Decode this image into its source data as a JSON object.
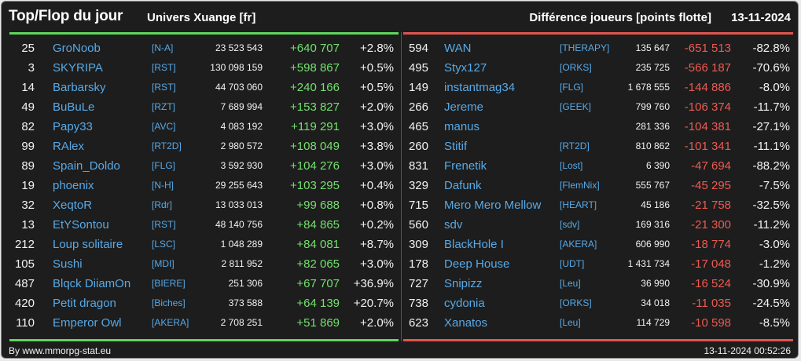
{
  "header": {
    "title": "Top/Flop du jour",
    "universe": "Univers Xuange [fr]",
    "metric": "Différence joueurs [points flotte]",
    "date": "13-11-2024"
  },
  "colors": {
    "top": "#5dd65a",
    "flop": "#e0554f",
    "link": "#58a9e6",
    "background": "#1d1d1d"
  },
  "top": [
    {
      "rank": "25",
      "name": "GroNoob",
      "ally": "[N-A]",
      "points": "23 523 543",
      "diff": "+640 707",
      "pct": "+2.8%"
    },
    {
      "rank": "3",
      "name": "SKYRIPA",
      "ally": "[RST]",
      "points": "130 098 159",
      "diff": "+598 867",
      "pct": "+0.5%"
    },
    {
      "rank": "14",
      "name": "Barbarsky",
      "ally": "[RST]",
      "points": "44 703 060",
      "diff": "+240 166",
      "pct": "+0.5%"
    },
    {
      "rank": "49",
      "name": "BuBuLe",
      "ally": "[RZT]",
      "points": "7 689 994",
      "diff": "+153 827",
      "pct": "+2.0%"
    },
    {
      "rank": "82",
      "name": "Papy33",
      "ally": "[AVC]",
      "points": "4 083 192",
      "diff": "+119 291",
      "pct": "+3.0%"
    },
    {
      "rank": "99",
      "name": "RAlex",
      "ally": "[RT2D]",
      "points": "2 980 572",
      "diff": "+108 049",
      "pct": "+3.8%"
    },
    {
      "rank": "89",
      "name": "Spain_Doldo",
      "ally": "[FLG]",
      "points": "3 592 930",
      "diff": "+104 276",
      "pct": "+3.0%"
    },
    {
      "rank": "19",
      "name": "phoenix",
      "ally": "[N-H]",
      "points": "29 255 643",
      "diff": "+103 295",
      "pct": "+0.4%"
    },
    {
      "rank": "32",
      "name": "XeqtoR",
      "ally": "[Rdr]",
      "points": "13 033 013",
      "diff": "+99 688",
      "pct": "+0.8%"
    },
    {
      "rank": "13",
      "name": "EtYSontou",
      "ally": "[RST]",
      "points": "48 140 756",
      "diff": "+84 865",
      "pct": "+0.2%"
    },
    {
      "rank": "212",
      "name": "Loup solitaire",
      "ally": "[LSC]",
      "points": "1 048 289",
      "diff": "+84 081",
      "pct": "+8.7%"
    },
    {
      "rank": "105",
      "name": "Sushi",
      "ally": "[MDI]",
      "points": "2 811 952",
      "diff": "+82 065",
      "pct": "+3.0%"
    },
    {
      "rank": "487",
      "name": "Blqck DiiamOn",
      "ally": "[BIERE]",
      "points": "251 306",
      "diff": "+67 707",
      "pct": "+36.9%"
    },
    {
      "rank": "420",
      "name": "Petit dragon",
      "ally": "[Biches]",
      "points": "373 588",
      "diff": "+64 139",
      "pct": "+20.7%"
    },
    {
      "rank": "110",
      "name": "Emperor Owl",
      "ally": "[AKERA]",
      "points": "2 708 251",
      "diff": "+51 869",
      "pct": "+2.0%"
    }
  ],
  "flop": [
    {
      "rank": "594",
      "name": "WAN",
      "ally": "[THERAPY]",
      "points": "135 647",
      "diff": "-651 513",
      "pct": "-82.8%"
    },
    {
      "rank": "495",
      "name": "Styx127",
      "ally": "[ORKS]",
      "points": "235 725",
      "diff": "-566 187",
      "pct": "-70.6%"
    },
    {
      "rank": "149",
      "name": "instantmag34",
      "ally": "[FLG]",
      "points": "1 678 555",
      "diff": "-144 886",
      "pct": "-8.0%"
    },
    {
      "rank": "266",
      "name": "Jereme",
      "ally": "[GEEK]",
      "points": "799 760",
      "diff": "-106 374",
      "pct": "-11.7%"
    },
    {
      "rank": "465",
      "name": "manus",
      "ally": "",
      "points": "281 336",
      "diff": "-104 381",
      "pct": "-27.1%"
    },
    {
      "rank": "260",
      "name": "Stitif",
      "ally": "[RT2D]",
      "points": "810 862",
      "diff": "-101 341",
      "pct": "-11.1%"
    },
    {
      "rank": "831",
      "name": "Frenetik",
      "ally": "[Lost]",
      "points": "6 390",
      "diff": "-47 694",
      "pct": "-88.2%"
    },
    {
      "rank": "329",
      "name": "Dafunk",
      "ally": "[FlemNix]",
      "points": "555 767",
      "diff": "-45 295",
      "pct": "-7.5%"
    },
    {
      "rank": "715",
      "name": "Mero Mero Mellow",
      "ally": "[HEART]",
      "points": "45 186",
      "diff": "-21 758",
      "pct": "-32.5%"
    },
    {
      "rank": "560",
      "name": "sdv",
      "ally": "[sdv]",
      "points": "169 316",
      "diff": "-21 300",
      "pct": "-11.2%"
    },
    {
      "rank": "309",
      "name": "BlackHole I",
      "ally": "[AKERA]",
      "points": "606 990",
      "diff": "-18 774",
      "pct": "-3.0%"
    },
    {
      "rank": "178",
      "name": "Deep House",
      "ally": "[UDT]",
      "points": "1 431 734",
      "diff": "-17 048",
      "pct": "-1.2%"
    },
    {
      "rank": "727",
      "name": "Snipizz",
      "ally": "[Leu]",
      "points": "36 990",
      "diff": "-16 524",
      "pct": "-30.9%"
    },
    {
      "rank": "738",
      "name": "cydonia",
      "ally": "[ORKS]",
      "points": "34 018",
      "diff": "-11 035",
      "pct": "-24.5%"
    },
    {
      "rank": "623",
      "name": "Xanatos",
      "ally": "[Leu]",
      "points": "114 729",
      "diff": "-10 598",
      "pct": "-8.5%"
    }
  ],
  "footer": {
    "source": "By www.mmorpg-stat.eu",
    "timestamp": "13-11-2024 00:52:26"
  }
}
